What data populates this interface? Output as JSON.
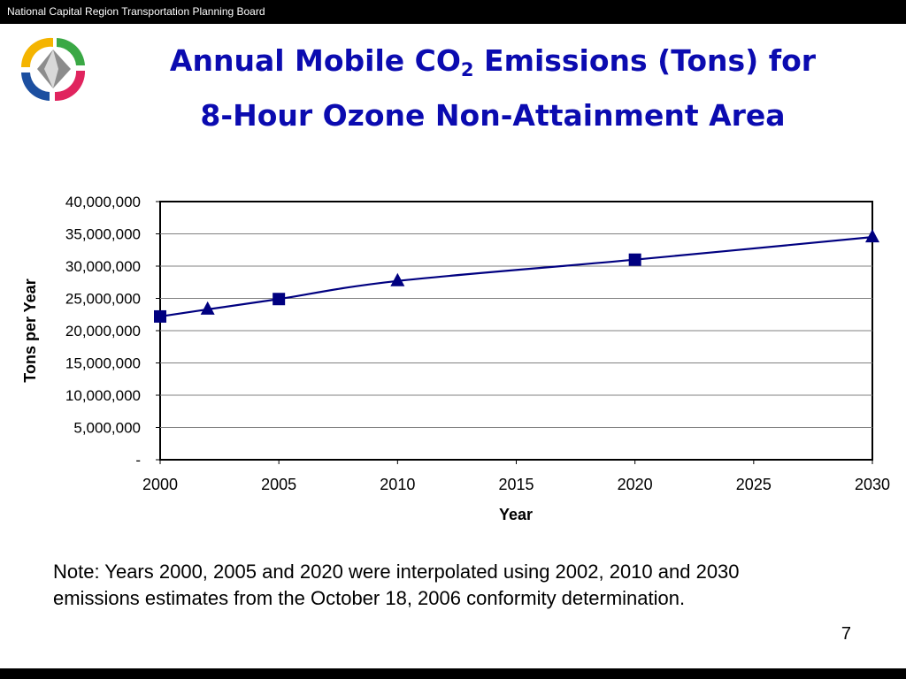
{
  "header": {
    "org_name": "National Capital Region Transportation Planning Board"
  },
  "slide": {
    "title_part1": "Annual Mobile CO",
    "title_sub": "2",
    "title_part2": " Emissions (Tons) for",
    "title_line2": "8-Hour Ozone Non-Attainment Area",
    "note_line1": "Note: Years 2000, 2005 and 2020 were interpolated using 2002, 2010 and 2030",
    "note_line2": "emissions estimates from the October 18, 2006 conformity determination.",
    "page_number": "7"
  },
  "colors": {
    "series": "#000080",
    "title": "#0b0bb0",
    "gridline": "#808080",
    "logo_gold": "#f4b400",
    "logo_green": "#3aa845",
    "logo_red": "#e0245e",
    "logo_blue": "#1c4fa0",
    "logo_gray": "#8c8c8c"
  },
  "chart_data": {
    "type": "line",
    "xlabel": "Year",
    "ylabel": "Tons per Year",
    "xlim": [
      2000,
      2030
    ],
    "ylim": [
      0,
      40000000
    ],
    "x_ticks": [
      "2000",
      "2005",
      "2010",
      "2015",
      "2020",
      "2025",
      "2030"
    ],
    "y_ticks": [
      "-",
      "5,000,000",
      "10,000,000",
      "15,000,000",
      "20,000,000",
      "25,000,000",
      "30,000,000",
      "35,000,000",
      "40,000,000"
    ],
    "grid": true,
    "legend": "none",
    "series": [
      {
        "points": [
          {
            "x": 2000,
            "y": 22200000,
            "marker": "square"
          },
          {
            "x": 2002,
            "y": 23300000,
            "marker": "triangle"
          },
          {
            "x": 2005,
            "y": 24900000,
            "marker": "square"
          },
          {
            "x": 2010,
            "y": 27700000,
            "marker": "triangle"
          },
          {
            "x": 2020,
            "y": 31000000,
            "marker": "square"
          },
          {
            "x": 2030,
            "y": 34500000,
            "marker": "triangle"
          }
        ]
      }
    ]
  }
}
